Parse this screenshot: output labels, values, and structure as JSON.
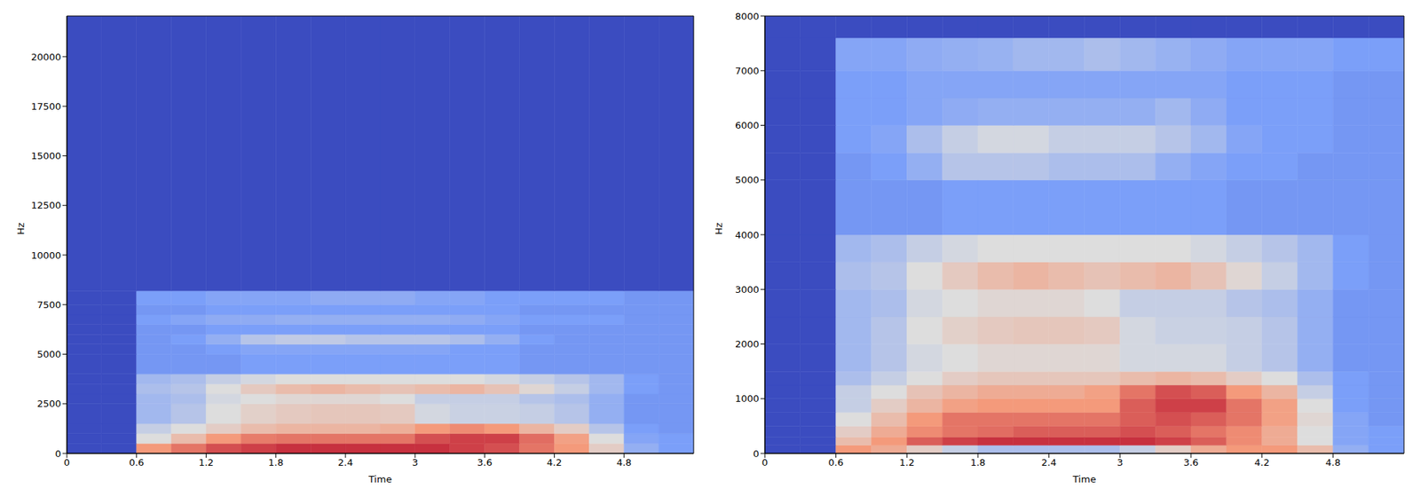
{
  "chart_data": [
    {
      "type": "heatmap",
      "x_label": "Time",
      "y_label": "Hz",
      "xlim": [
        0,
        5.4
      ],
      "ylim": [
        0,
        22050
      ],
      "xticks": [
        0,
        0.6,
        1.2,
        1.8,
        2.4,
        3,
        3.6,
        4.2,
        4.8
      ],
      "yticks": [
        0,
        2500,
        5000,
        7500,
        10000,
        12500,
        15000,
        17500,
        20000
      ],
      "clim": [
        -80,
        0
      ],
      "time_bins": [
        0,
        0.3,
        0.6,
        0.9,
        1.2,
        1.5,
        1.8,
        2.1,
        2.4,
        2.7,
        3.0,
        3.3,
        3.6,
        3.9,
        4.2,
        4.5,
        4.8,
        5.1,
        5.4
      ],
      "freq_bins": [
        0,
        500,
        1000,
        1500,
        2500,
        3000,
        3500,
        4000,
        5000,
        5500,
        6000,
        6500,
        7000,
        7500,
        8200,
        22050
      ],
      "cells": [
        [
          -80,
          -80,
          -20,
          -15,
          -10,
          -8,
          -6,
          -6,
          -6,
          -6,
          -6,
          -8,
          -10,
          -15,
          -20,
          -35,
          -55,
          -60
        ],
        [
          -80,
          -80,
          -40,
          -30,
          -20,
          -16,
          -15,
          -15,
          -15,
          -15,
          -10,
          -8,
          -8,
          -14,
          -22,
          -40,
          -58,
          -60
        ],
        [
          -80,
          -80,
          -45,
          -40,
          -35,
          -30,
          -28,
          -28,
          -28,
          -26,
          -20,
          -18,
          -20,
          -28,
          -35,
          -48,
          -60,
          -62
        ],
        [
          -80,
          -80,
          -52,
          -48,
          -40,
          -36,
          -34,
          -33,
          -33,
          -34,
          -42,
          -44,
          -44,
          -45,
          -48,
          -55,
          -62,
          -62
        ],
        [
          -80,
          -80,
          -52,
          -50,
          -42,
          -40,
          -38,
          -38,
          -38,
          -40,
          -45,
          -45,
          -45,
          -48,
          -50,
          -55,
          -62,
          -62
        ],
        [
          -80,
          -80,
          -50,
          -48,
          -40,
          -34,
          -30,
          -28,
          -30,
          -32,
          -30,
          -28,
          -32,
          -38,
          -45,
          -52,
          -60,
          -62
        ],
        [
          -80,
          -80,
          -52,
          -50,
          -45,
          -42,
          -40,
          -40,
          -40,
          -40,
          -40,
          -40,
          -42,
          -45,
          -48,
          -52,
          -60,
          -62
        ],
        [
          -80,
          -80,
          -62,
          -62,
          -62,
          -60,
          -60,
          -60,
          -60,
          -60,
          -60,
          -60,
          -60,
          -62,
          -62,
          -62,
          -62,
          -62
        ],
        [
          -80,
          -80,
          -62,
          -62,
          -60,
          -58,
          -58,
          -58,
          -58,
          -58,
          -58,
          -60,
          -60,
          -62,
          -62,
          -62,
          -62,
          -62
        ],
        [
          -80,
          -80,
          -62,
          -60,
          -55,
          -48,
          -46,
          -46,
          -48,
          -48,
          -48,
          -50,
          -55,
          -60,
          -62,
          -62,
          -62,
          -62
        ],
        [
          -80,
          -80,
          -62,
          -62,
          -60,
          -60,
          -60,
          -60,
          -60,
          -60,
          -60,
          -60,
          -60,
          -62,
          -62,
          -62,
          -62,
          -62
        ],
        [
          -80,
          -80,
          -60,
          -58,
          -56,
          -56,
          -55,
          -55,
          -55,
          -55,
          -55,
          -56,
          -58,
          -60,
          -60,
          -60,
          -62,
          -62
        ],
        [
          -80,
          -80,
          -62,
          -62,
          -60,
          -60,
          -60,
          -60,
          -60,
          -60,
          -60,
          -60,
          -60,
          -62,
          -62,
          -62,
          -62,
          -62
        ],
        [
          -80,
          -80,
          -60,
          -60,
          -58,
          -58,
          -58,
          -56,
          -56,
          -56,
          -58,
          -58,
          -60,
          -60,
          -60,
          -60,
          -62,
          -62
        ],
        [
          -80,
          -80,
          -80,
          -80,
          -80,
          -80,
          -80,
          -80,
          -80,
          -80,
          -80,
          -80,
          -80,
          -80,
          -80,
          -80,
          -80,
          -80
        ]
      ]
    },
    {
      "type": "heatmap",
      "x_label": "Time",
      "y_label": "Hz",
      "xlim": [
        0,
        5.4
      ],
      "ylim": [
        0,
        8000
      ],
      "xticks": [
        0,
        0.6,
        1.2,
        1.8,
        2.4,
        3,
        3.6,
        4.2,
        4.8
      ],
      "yticks": [
        0,
        1000,
        2000,
        3000,
        4000,
        5000,
        6000,
        7000,
        8000
      ],
      "clim": [
        -80,
        0
      ],
      "time_bins": [
        0,
        0.3,
        0.6,
        0.9,
        1.2,
        1.5,
        1.8,
        2.1,
        2.4,
        2.7,
        3.0,
        3.3,
        3.6,
        3.9,
        4.2,
        4.5,
        4.8,
        5.1,
        5.4
      ],
      "freq_bins": [
        0,
        150,
        300,
        500,
        750,
        1000,
        1250,
        1500,
        2000,
        2500,
        3000,
        3500,
        4000,
        5000,
        5500,
        6000,
        6500,
        7000,
        7600,
        8000
      ],
      "cells": [
        [
          -80,
          -80,
          -20,
          -25,
          -35,
          -45,
          -50,
          -50,
          -50,
          -50,
          -45,
          -35,
          -25,
          -20,
          -20,
          -30,
          -55,
          -60
        ],
        [
          -80,
          -80,
          -30,
          -20,
          -12,
          -8,
          -6,
          -6,
          -6,
          -6,
          -6,
          -8,
          -12,
          -18,
          -25,
          -40,
          -58,
          -60
        ],
        [
          -80,
          -80,
          -35,
          -25,
          -18,
          -15,
          -14,
          -12,
          -12,
          -12,
          -10,
          -12,
          -15,
          -18,
          -25,
          -40,
          -58,
          -60
        ],
        [
          -80,
          -80,
          -40,
          -30,
          -20,
          -15,
          -15,
          -15,
          -15,
          -15,
          -12,
          -10,
          -12,
          -15,
          -22,
          -38,
          -58,
          -62
        ],
        [
          -80,
          -80,
          -45,
          -35,
          -28,
          -22,
          -20,
          -20,
          -20,
          -20,
          -12,
          -8,
          -8,
          -15,
          -22,
          -40,
          -60,
          -62
        ],
        [
          -80,
          -80,
          -45,
          -40,
          -32,
          -28,
          -25,
          -25,
          -25,
          -22,
          -15,
          -10,
          -12,
          -20,
          -28,
          -45,
          -60,
          -62
        ],
        [
          -80,
          -80,
          -50,
          -45,
          -40,
          -35,
          -33,
          -33,
          -33,
          -33,
          -30,
          -28,
          -30,
          -35,
          -40,
          -50,
          -60,
          -62
        ],
        [
          -80,
          -80,
          -52,
          -48,
          -42,
          -40,
          -38,
          -38,
          -38,
          -38,
          -42,
          -42,
          -42,
          -45,
          -48,
          -55,
          -62,
          -62
        ],
        [
          -80,
          -80,
          -52,
          -48,
          -40,
          -36,
          -34,
          -33,
          -33,
          -34,
          -42,
          -44,
          -44,
          -45,
          -48,
          -55,
          -62,
          -62
        ],
        [
          -80,
          -80,
          -52,
          -50,
          -42,
          -40,
          -38,
          -38,
          -38,
          -40,
          -45,
          -45,
          -45,
          -48,
          -50,
          -55,
          -62,
          -62
        ],
        [
          -80,
          -80,
          -50,
          -48,
          -40,
          -34,
          -30,
          -28,
          -30,
          -32,
          -30,
          -28,
          -32,
          -38,
          -45,
          -52,
          -60,
          -62
        ],
        [
          -80,
          -80,
          -52,
          -50,
          -45,
          -42,
          -40,
          -40,
          -40,
          -40,
          -40,
          -40,
          -42,
          -45,
          -48,
          -52,
          -60,
          -62
        ],
        [
          -80,
          -80,
          -62,
          -62,
          -62,
          -60,
          -60,
          -60,
          -60,
          -60,
          -60,
          -60,
          -60,
          -62,
          -62,
          -62,
          -62,
          -62
        ],
        [
          -80,
          -80,
          -62,
          -60,
          -55,
          -48,
          -48,
          -48,
          -50,
          -50,
          -50,
          -55,
          -58,
          -60,
          -60,
          -62,
          -62,
          -62
        ],
        [
          -80,
          -80,
          -60,
          -58,
          -50,
          -45,
          -42,
          -42,
          -45,
          -45,
          -45,
          -48,
          -52,
          -58,
          -60,
          -60,
          -62,
          -62
        ],
        [
          -80,
          -80,
          -60,
          -60,
          -58,
          -56,
          -55,
          -55,
          -55,
          -55,
          -55,
          -52,
          -56,
          -60,
          -60,
          -60,
          -62,
          -62
        ],
        [
          -80,
          -80,
          -60,
          -60,
          -58,
          -58,
          -58,
          -58,
          -58,
          -58,
          -58,
          -58,
          -58,
          -60,
          -60,
          -60,
          -62,
          -62
        ],
        [
          -80,
          -80,
          -58,
          -58,
          -56,
          -55,
          -54,
          -52,
          -52,
          -50,
          -52,
          -54,
          -56,
          -58,
          -58,
          -58,
          -60,
          -60
        ],
        [
          -80,
          -80,
          -80,
          -80,
          -80,
          -80,
          -80,
          -80,
          -80,
          -80,
          -80,
          -80,
          -80,
          -80,
          -80,
          -80,
          -80,
          -80
        ]
      ]
    }
  ]
}
